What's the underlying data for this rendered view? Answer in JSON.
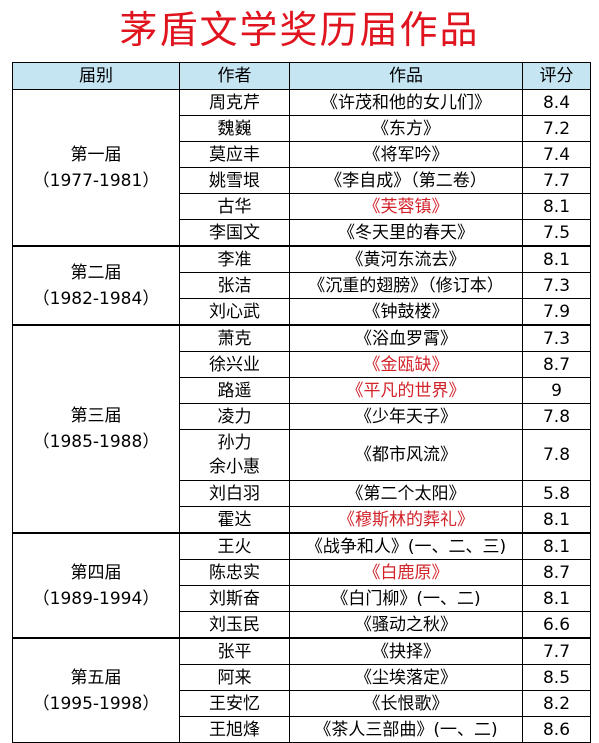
{
  "title": "茅盾文学奖历届作品",
  "headers": {
    "session": "届别",
    "author": "作者",
    "work": "作品",
    "score": "评分"
  },
  "colors": {
    "title": "#e0141e",
    "header_bg": "#c6e5f2",
    "highlight": "#d2232a"
  },
  "groups": [
    {
      "name": "第一届",
      "years": "（1977-1981）",
      "rows": [
        {
          "author": "周克芹",
          "work": "《许茂和他的女儿们》",
          "score": "8.4",
          "highlight": false
        },
        {
          "author": "魏巍",
          "work": "《东方》",
          "score": "7.2",
          "highlight": false
        },
        {
          "author": "莫应丰",
          "work": "《将军吟》",
          "score": "7.4",
          "highlight": false
        },
        {
          "author": "姚雪垠",
          "work": "《李自成》（第二卷）",
          "score": "7.7",
          "highlight": false
        },
        {
          "author": "古华",
          "work": "《芙蓉镇》",
          "score": "8.1",
          "highlight": true
        },
        {
          "author": "李国文",
          "work": "《冬天里的春天》",
          "score": "7.5",
          "highlight": false
        }
      ]
    },
    {
      "name": "第二届",
      "years": "（1982-1984）",
      "rows": [
        {
          "author": "李准",
          "work": "《黄河东流去》",
          "score": "8.1",
          "highlight": false
        },
        {
          "author": "张洁",
          "work": "《沉重的翅膀》（修订本）",
          "score": "7.3",
          "highlight": false
        },
        {
          "author": "刘心武",
          "work": "《钟鼓楼》",
          "score": "7.9",
          "highlight": false
        }
      ]
    },
    {
      "name": "第三届",
      "years": "（1985-1988）",
      "rows": [
        {
          "author": "萧克",
          "work": "《浴血罗霄》",
          "score": "7.3",
          "highlight": false
        },
        {
          "author": "徐兴业",
          "work": "《金瓯缺》",
          "score": "8.7",
          "highlight": true
        },
        {
          "author": "路遥",
          "work": "《平凡的世界》",
          "score": "9",
          "highlight": true
        },
        {
          "author": "凌力",
          "work": "《少年天子》",
          "score": "7.8",
          "highlight": false
        },
        {
          "author": "孙力",
          "author2": "余小惠",
          "work": "《都市风流》",
          "score": "7.8",
          "highlight": false
        },
        {
          "author": "刘白羽",
          "work": "《第二个太阳》",
          "score": "5.8",
          "highlight": false
        },
        {
          "author": "霍达",
          "work": "《穆斯林的葬礼》",
          "score": "8.1",
          "highlight": true
        }
      ]
    },
    {
      "name": "第四届",
      "years": "（1989-1994）",
      "rows": [
        {
          "author": "王火",
          "work": "《战争和人》(一、二、三)",
          "score": "8.1",
          "highlight": false
        },
        {
          "author": "陈忠实",
          "work": "《白鹿原》",
          "score": "8.7",
          "highlight": true
        },
        {
          "author": "刘斯奋",
          "work": "《白门柳》(一、二)",
          "score": "8.1",
          "highlight": false
        },
        {
          "author": "刘玉民",
          "work": "《骚动之秋》",
          "score": "6.6",
          "highlight": false
        }
      ]
    },
    {
      "name": "第五届",
      "years": "（1995-1998）",
      "rows": [
        {
          "author": "张平",
          "work": "《抉择》",
          "score": "7.7",
          "highlight": false
        },
        {
          "author": "阿来",
          "work": "《尘埃落定》",
          "score": "8.5",
          "highlight": false
        },
        {
          "author": "王安忆",
          "work": "《长恨歌》",
          "score": "8.2",
          "highlight": false
        },
        {
          "author": "王旭烽",
          "work": "《茶人三部曲》(一、二)",
          "score": "8.6",
          "highlight": false
        }
      ]
    }
  ]
}
